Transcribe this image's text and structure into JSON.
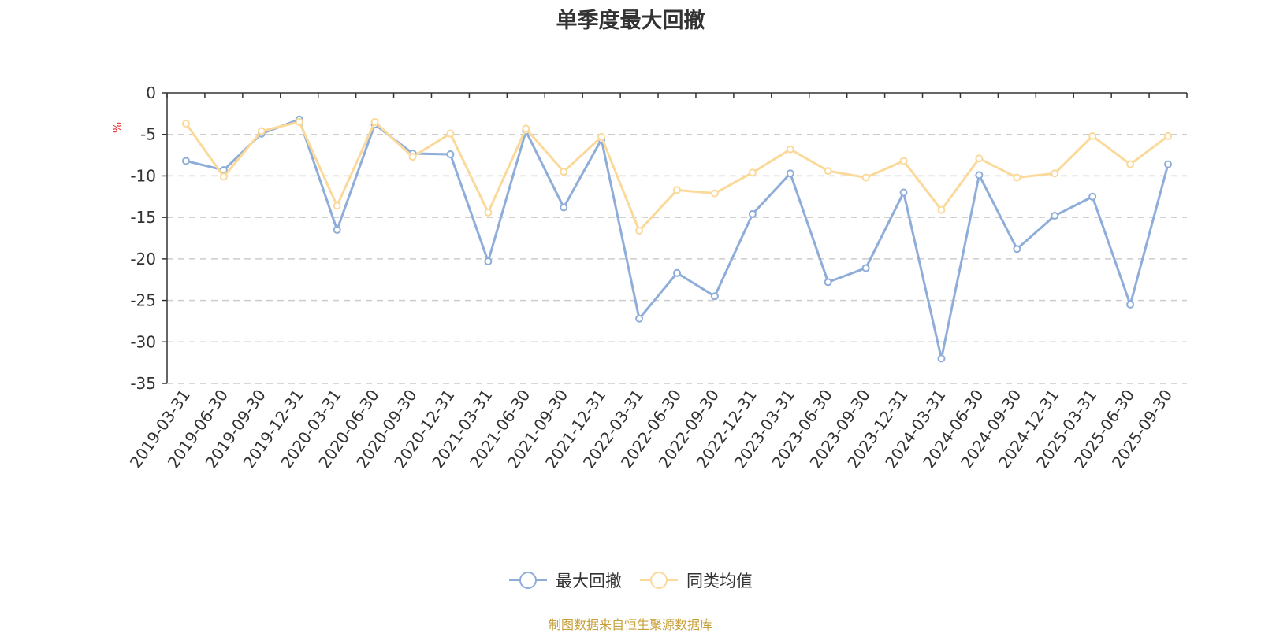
{
  "chart_data": {
    "type": "line",
    "title": "单季度最大回撤",
    "ylabel": "%",
    "ylim": [
      -35,
      0
    ],
    "yticks": [
      0,
      -5,
      -10,
      -15,
      -20,
      -25,
      -30,
      -35
    ],
    "grid": true,
    "legend_position": "bottom",
    "categories": [
      "2019-03-31",
      "2019-06-30",
      "2019-09-30",
      "2019-12-31",
      "2020-03-31",
      "2020-06-30",
      "2020-09-30",
      "2020-12-31",
      "2021-03-31",
      "2021-06-30",
      "2021-09-30",
      "2021-12-31",
      "2022-03-31",
      "2022-06-30",
      "2022-09-30",
      "2022-12-31",
      "2023-03-31",
      "2023-06-30",
      "2023-09-30",
      "2023-12-31",
      "2024-03-31",
      "2024-06-30",
      "2024-09-30",
      "2024-12-31",
      "2025-03-31",
      "2025-06-30",
      "2025-09-30"
    ],
    "series": [
      {
        "name": "最大回撤",
        "color": "#8eadd9",
        "values": [
          -8.2,
          -9.3,
          -4.9,
          -3.2,
          -16.5,
          -3.8,
          -7.3,
          -7.4,
          -20.3,
          -4.6,
          -13.8,
          -5.6,
          -27.2,
          -21.7,
          -24.5,
          -14.6,
          -9.7,
          -22.8,
          -21.1,
          -12.0,
          -32.0,
          -9.9,
          -18.8,
          -14.8,
          -12.5,
          -25.5,
          -8.6
        ]
      },
      {
        "name": "同类均值",
        "color": "#fbd99a",
        "values": [
          -3.7,
          -10.1,
          -4.6,
          -3.5,
          -13.6,
          -3.5,
          -7.7,
          -4.9,
          -14.4,
          -4.3,
          -9.5,
          -5.3,
          -16.6,
          -11.7,
          -12.1,
          -9.6,
          -6.8,
          -9.4,
          -10.2,
          -8.2,
          -14.1,
          -7.9,
          -10.2,
          -9.7,
          -5.2,
          -8.6,
          -5.2
        ]
      }
    ]
  },
  "footer": {
    "source": "制图数据来自恒生聚源数据库"
  }
}
